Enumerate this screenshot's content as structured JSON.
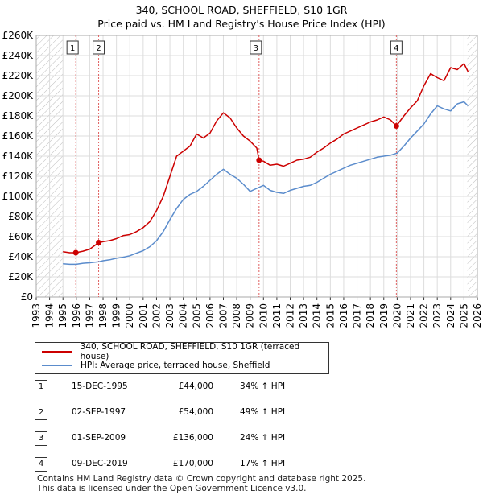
{
  "chart_data": {
    "type": "line",
    "title": "340, SCHOOL ROAD, SHEFFIELD, S10 1GR",
    "subtitle": "Price paid vs. HM Land Registry's House Price Index (HPI)",
    "xlabel": "",
    "ylabel": "",
    "xlim": [
      1993,
      2026
    ],
    "ylim": [
      0,
      260000
    ],
    "x_ticks": [
      "1993",
      "1994",
      "1995",
      "1996",
      "1997",
      "1998",
      "1999",
      "2000",
      "2001",
      "2002",
      "2003",
      "2004",
      "2005",
      "2006",
      "2007",
      "2008",
      "2009",
      "2010",
      "2011",
      "2012",
      "2013",
      "2014",
      "2015",
      "2016",
      "2017",
      "2018",
      "2019",
      "2020",
      "2021",
      "2022",
      "2023",
      "2024",
      "2025",
      "2026"
    ],
    "y_ticks": [
      {
        "value": 0,
        "label": "£0"
      },
      {
        "value": 20000,
        "label": "£20K"
      },
      {
        "value": 40000,
        "label": "£40K"
      },
      {
        "value": 60000,
        "label": "£60K"
      },
      {
        "value": 80000,
        "label": "£80K"
      },
      {
        "value": 100000,
        "label": "£100K"
      },
      {
        "value": 120000,
        "label": "£120K"
      },
      {
        "value": 140000,
        "label": "£140K"
      },
      {
        "value": 160000,
        "label": "£160K"
      },
      {
        "value": 180000,
        "label": "£180K"
      },
      {
        "value": 200000,
        "label": "£200K"
      },
      {
        "value": 220000,
        "label": "£220K"
      },
      {
        "value": 240000,
        "label": "£240K"
      },
      {
        "value": 260000,
        "label": "£260K"
      }
    ],
    "hatched_before": 1995.0,
    "hatched_after": 2025.25,
    "series": [
      {
        "name": "340, SCHOOL ROAD, SHEFFIELD, S10 1GR (terraced house)",
        "color": "#cc0000",
        "x": [
          1995.0,
          1995.5,
          1995.96,
          1996.5,
          1997.0,
          1997.67,
          1998.0,
          1998.5,
          1999.0,
          1999.5,
          2000.0,
          2000.5,
          2001.0,
          2001.5,
          2002.0,
          2002.5,
          2003.0,
          2003.5,
          2004.0,
          2004.5,
          2005.0,
          2005.5,
          2006.0,
          2006.5,
          2007.0,
          2007.5,
          2008.0,
          2008.5,
          2009.0,
          2009.5,
          2009.67,
          2010.0,
          2010.5,
          2011.0,
          2011.5,
          2012.0,
          2012.5,
          2013.0,
          2013.5,
          2014.0,
          2014.5,
          2015.0,
          2015.5,
          2016.0,
          2016.5,
          2017.0,
          2017.5,
          2018.0,
          2018.5,
          2019.0,
          2019.5,
          2019.94,
          2020.5,
          2021.0,
          2021.5,
          2022.0,
          2022.5,
          2023.0,
          2023.5,
          2024.0,
          2024.5,
          2025.0,
          2025.3
        ],
        "y": [
          45000,
          44000,
          44000,
          45500,
          47500,
          54000,
          55000,
          56000,
          58000,
          61000,
          62000,
          65000,
          69000,
          75000,
          86000,
          100000,
          120000,
          140000,
          145000,
          150000,
          162000,
          158000,
          163000,
          175000,
          183000,
          178000,
          168000,
          160000,
          155000,
          148000,
          136000,
          135000,
          131000,
          132000,
          130000,
          133000,
          136000,
          137000,
          139000,
          144000,
          148000,
          153000,
          157000,
          162000,
          165000,
          168000,
          171000,
          174000,
          176000,
          179000,
          176000,
          170000,
          180000,
          188000,
          195000,
          210000,
          222000,
          218000,
          215000,
          228000,
          226000,
          232000,
          224000
        ]
      },
      {
        "name": "HPI: Average price, terraced house, Sheffield",
        "color": "#5b8ccc",
        "x": [
          1995.0,
          1995.5,
          1996.0,
          1996.5,
          1997.0,
          1997.67,
          1998.0,
          1998.5,
          1999.0,
          1999.5,
          2000.0,
          2000.5,
          2001.0,
          2001.5,
          2002.0,
          2002.5,
          2003.0,
          2003.5,
          2004.0,
          2004.5,
          2005.0,
          2005.5,
          2006.0,
          2006.5,
          2007.0,
          2007.5,
          2008.0,
          2008.5,
          2009.0,
          2009.5,
          2010.0,
          2010.5,
          2011.0,
          2011.5,
          2012.0,
          2012.5,
          2013.0,
          2013.5,
          2014.0,
          2014.5,
          2015.0,
          2015.5,
          2016.0,
          2016.5,
          2017.0,
          2017.5,
          2018.0,
          2018.5,
          2019.0,
          2019.5,
          2020.0,
          2020.5,
          2021.0,
          2021.5,
          2022.0,
          2022.5,
          2023.0,
          2023.5,
          2024.0,
          2024.5,
          2025.0,
          2025.3
        ],
        "y": [
          33000,
          32500,
          32500,
          33500,
          34000,
          35000,
          36000,
          37000,
          38500,
          39500,
          41000,
          43500,
          46000,
          50000,
          56000,
          65000,
          77000,
          88000,
          97000,
          102000,
          105000,
          110000,
          116000,
          122000,
          127000,
          122000,
          118000,
          112000,
          105000,
          108000,
          111000,
          106000,
          104000,
          103000,
          106000,
          108000,
          110000,
          111000,
          114000,
          118000,
          122000,
          125000,
          128000,
          131000,
          133000,
          135000,
          137000,
          139000,
          140000,
          141000,
          143000,
          150000,
          158000,
          165000,
          172000,
          182000,
          190000,
          187000,
          185000,
          192000,
          194000,
          190000
        ]
      }
    ],
    "sales": [
      {
        "id": "1",
        "x": 1995.96,
        "y": 44000,
        "date": "15-DEC-1995",
        "price": "£44,000",
        "hpi": "34% ↑ HPI"
      },
      {
        "id": "2",
        "x": 1997.67,
        "y": 54000,
        "date": "02-SEP-1997",
        "price": "£54,000",
        "hpi": "49% ↑ HPI"
      },
      {
        "id": "3",
        "x": 2009.67,
        "y": 136000,
        "date": "01-SEP-2009",
        "price": "£136,000",
        "hpi": "24% ↑ HPI"
      },
      {
        "id": "4",
        "x": 2019.94,
        "y": 170000,
        "date": "09-DEC-2019",
        "price": "£170,000",
        "hpi": "17% ↑ HPI"
      }
    ]
  },
  "legend": {
    "series_red": "340, SCHOOL ROAD, SHEFFIELD, S10 1GR (terraced house)",
    "series_blue": "HPI: Average price, terraced house, Sheffield"
  },
  "footer": {
    "line1": "Contains HM Land Registry data © Crown copyright and database right 2025.",
    "line2": "This data is licensed under the Open Government Licence v3.0."
  }
}
